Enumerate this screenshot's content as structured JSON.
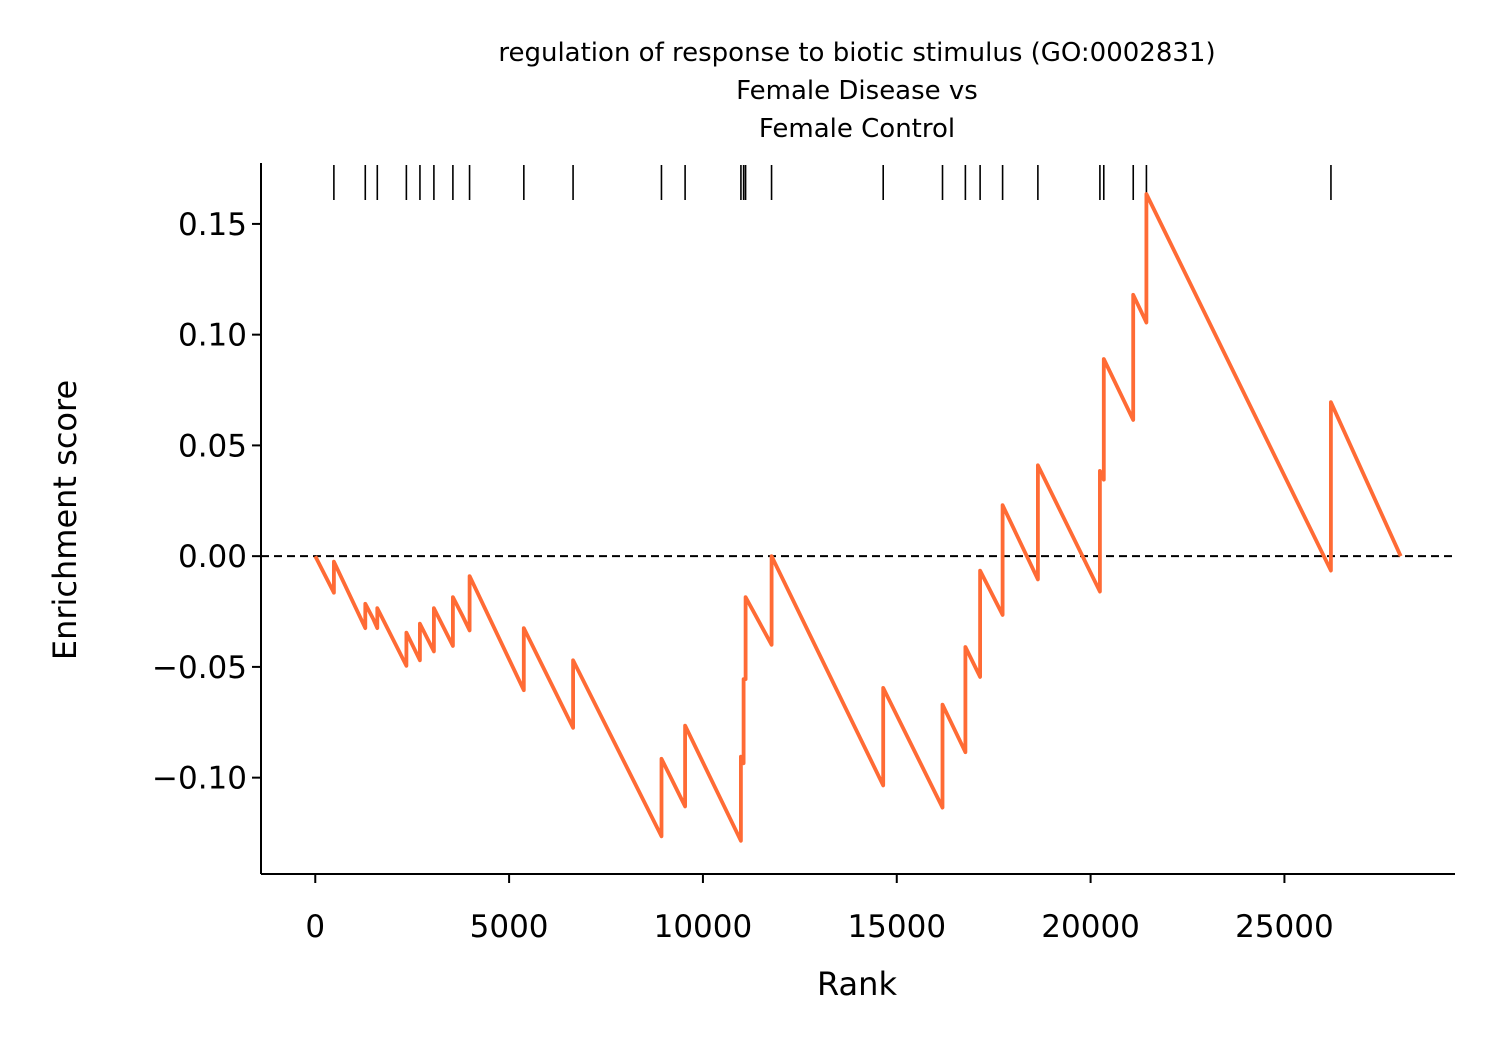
{
  "chart_data": {
    "type": "line",
    "title_lines": [
      "regulation of response to biotic stimulus (GO:0002831)",
      "Female Disease vs",
      "Female Control"
    ],
    "xlabel": "Rank",
    "ylabel": "Enrichment score",
    "xlim": [
      -1400,
      29400
    ],
    "ylim": [
      -0.1435,
      0.1775
    ],
    "xticks": [
      {
        "value": 0,
        "label": "0"
      },
      {
        "value": 5000,
        "label": "5000"
      },
      {
        "value": 10000,
        "label": "10000"
      },
      {
        "value": 15000,
        "label": "15000"
      },
      {
        "value": 20000,
        "label": "20000"
      },
      {
        "value": 25000,
        "label": "25000"
      }
    ],
    "yticks": [
      {
        "value": -0.1,
        "label": "−0.10"
      },
      {
        "value": -0.05,
        "label": "−0.05"
      },
      {
        "value": 0.0,
        "label": "0.00"
      },
      {
        "value": 0.05,
        "label": "0.05"
      },
      {
        "value": 0.1,
        "label": "0.10"
      },
      {
        "value": 0.15,
        "label": "0.15"
      }
    ],
    "zero_line": {
      "y": 0,
      "style": "dashed",
      "color": "#000000"
    },
    "series": [
      {
        "color": "#ff6b35",
        "points": [
          [
            0,
            0.0
          ],
          [
            480,
            -0.0165
          ],
          [
            480,
            -0.0025
          ],
          [
            1290,
            -0.0325
          ],
          [
            1290,
            -0.0215
          ],
          [
            1500,
            -0.0285
          ],
          [
            1600,
            -0.0325
          ],
          [
            1600,
            -0.0235
          ],
          [
            2350,
            -0.0495
          ],
          [
            2350,
            -0.0345
          ],
          [
            2700,
            -0.047
          ],
          [
            2700,
            -0.0305
          ],
          [
            3060,
            -0.043
          ],
          [
            3060,
            -0.0235
          ],
          [
            3550,
            -0.0405
          ],
          [
            3550,
            -0.0185
          ],
          [
            3800,
            -0.027
          ],
          [
            3980,
            -0.0335
          ],
          [
            3980,
            -0.009
          ],
          [
            5380,
            -0.0605
          ],
          [
            5380,
            -0.0325
          ],
          [
            6650,
            -0.0775
          ],
          [
            6650,
            -0.047
          ],
          [
            8930,
            -0.1265
          ],
          [
            8930,
            -0.0915
          ],
          [
            9540,
            -0.113
          ],
          [
            9540,
            -0.0765
          ],
          [
            10980,
            -0.1285
          ],
          [
            10980,
            -0.0905
          ],
          [
            11050,
            -0.0935
          ],
          [
            11050,
            -0.0555
          ],
          [
            11100,
            -0.0555
          ],
          [
            11100,
            -0.0185
          ],
          [
            11770,
            -0.04
          ],
          [
            11770,
            0.0
          ],
          [
            14650,
            -0.1035
          ],
          [
            14650,
            -0.0595
          ],
          [
            16180,
            -0.1135
          ],
          [
            16180,
            -0.067
          ],
          [
            16770,
            -0.0885
          ],
          [
            16770,
            -0.041
          ],
          [
            17150,
            -0.0545
          ],
          [
            17150,
            -0.0065
          ],
          [
            17730,
            -0.0265
          ],
          [
            17730,
            0.023
          ],
          [
            18640,
            -0.0105
          ],
          [
            18640,
            0.041
          ],
          [
            20240,
            -0.016
          ],
          [
            20240,
            0.0385
          ],
          [
            20340,
            0.0345
          ],
          [
            20340,
            0.089
          ],
          [
            21100,
            0.0615
          ],
          [
            21100,
            0.118
          ],
          [
            21440,
            0.1055
          ],
          [
            21440,
            0.1635
          ],
          [
            26200,
            -0.0065
          ],
          [
            26200,
            0.0695
          ],
          [
            28000,
            0.0
          ]
        ]
      }
    ],
    "gene_hits": [
      480,
      1290,
      1600,
      2350,
      2700,
      3060,
      3550,
      3980,
      5380,
      6650,
      8930,
      9540,
      10980,
      11050,
      11100,
      11770,
      14650,
      16180,
      16770,
      17150,
      17730,
      18640,
      20240,
      20340,
      21100,
      21440,
      26200
    ]
  }
}
